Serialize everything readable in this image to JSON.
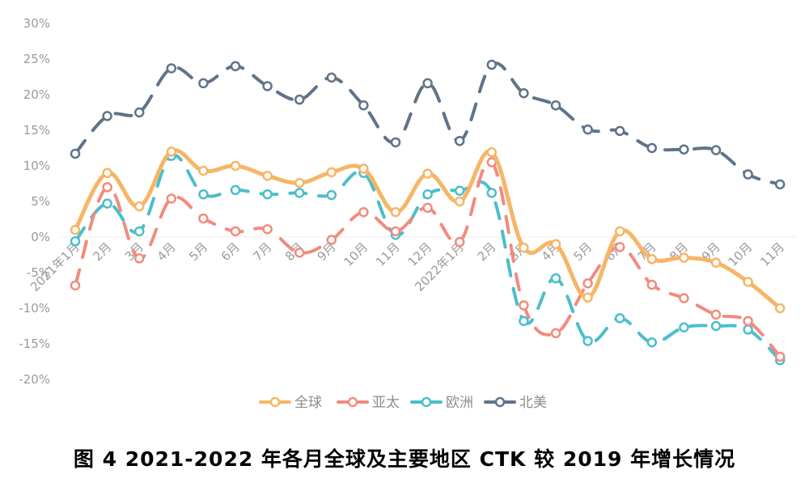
{
  "chart_data": {
    "type": "line",
    "title": "图 4 2021-2022 年各月全球及主要地区 CTK 较 2019 年增长情况",
    "categories": [
      "2021年1月",
      "2月",
      "3月",
      "4月",
      "5月",
      "6月",
      "7月",
      "8月",
      "9月",
      "10月",
      "11月",
      "12月",
      "2022年1月",
      "2月",
      "3月",
      "4月",
      "5月",
      "6月",
      "7月",
      "8月",
      "9月",
      "10月",
      "11月"
    ],
    "y_ticks": [
      "30%",
      "25%",
      "20%",
      "15%",
      "10%",
      "5%",
      "0%",
      "-5%",
      "-10%",
      "-15%",
      "-20%"
    ],
    "ylim": [
      -20,
      30
    ],
    "y_unit": "%",
    "legend_position": "bottom",
    "grid": false,
    "series": [
      {
        "name": "全球",
        "style": "solid",
        "color": "#F7B566",
        "values": [
          1.0,
          9.0,
          4.3,
          12.0,
          9.3,
          10.0,
          8.6,
          7.6,
          9.1,
          9.6,
          3.5,
          8.9,
          5.0,
          11.9,
          -1.5,
          -1.0,
          -8.5,
          0.8,
          -3.1,
          -2.9,
          -3.6,
          -6.3,
          -10.0
        ]
      },
      {
        "name": "亚太",
        "style": "dashed",
        "color": "#F28B7E",
        "values": [
          -6.8,
          7.0,
          -3.0,
          5.4,
          2.6,
          0.8,
          1.1,
          -2.2,
          -0.4,
          3.5,
          0.8,
          4.1,
          -0.7,
          10.5,
          -9.6,
          -13.5,
          -6.5,
          -1.4,
          -6.7,
          -8.6,
          -10.9,
          -11.8,
          -16.8
        ]
      },
      {
        "name": "欧洲",
        "style": "dashed",
        "color": "#4BBECB",
        "values": [
          -0.6,
          4.7,
          0.8,
          11.4,
          6.0,
          6.6,
          6.0,
          6.2,
          5.9,
          9.0,
          0.3,
          6.0,
          6.5,
          6.2,
          -11.8,
          -5.8,
          -14.6,
          -11.4,
          -14.8,
          -12.7,
          -12.5,
          -13.0,
          -17.3
        ]
      },
      {
        "name": "北美",
        "style": "dashed",
        "color": "#5F7389",
        "values": [
          11.7,
          17.0,
          17.5,
          23.7,
          21.6,
          24.0,
          21.2,
          19.3,
          22.4,
          18.5,
          13.3,
          21.6,
          13.5,
          24.2,
          20.2,
          18.5,
          15.1,
          14.9,
          12.5,
          12.3,
          12.2,
          8.8,
          7.4
        ]
      }
    ]
  }
}
